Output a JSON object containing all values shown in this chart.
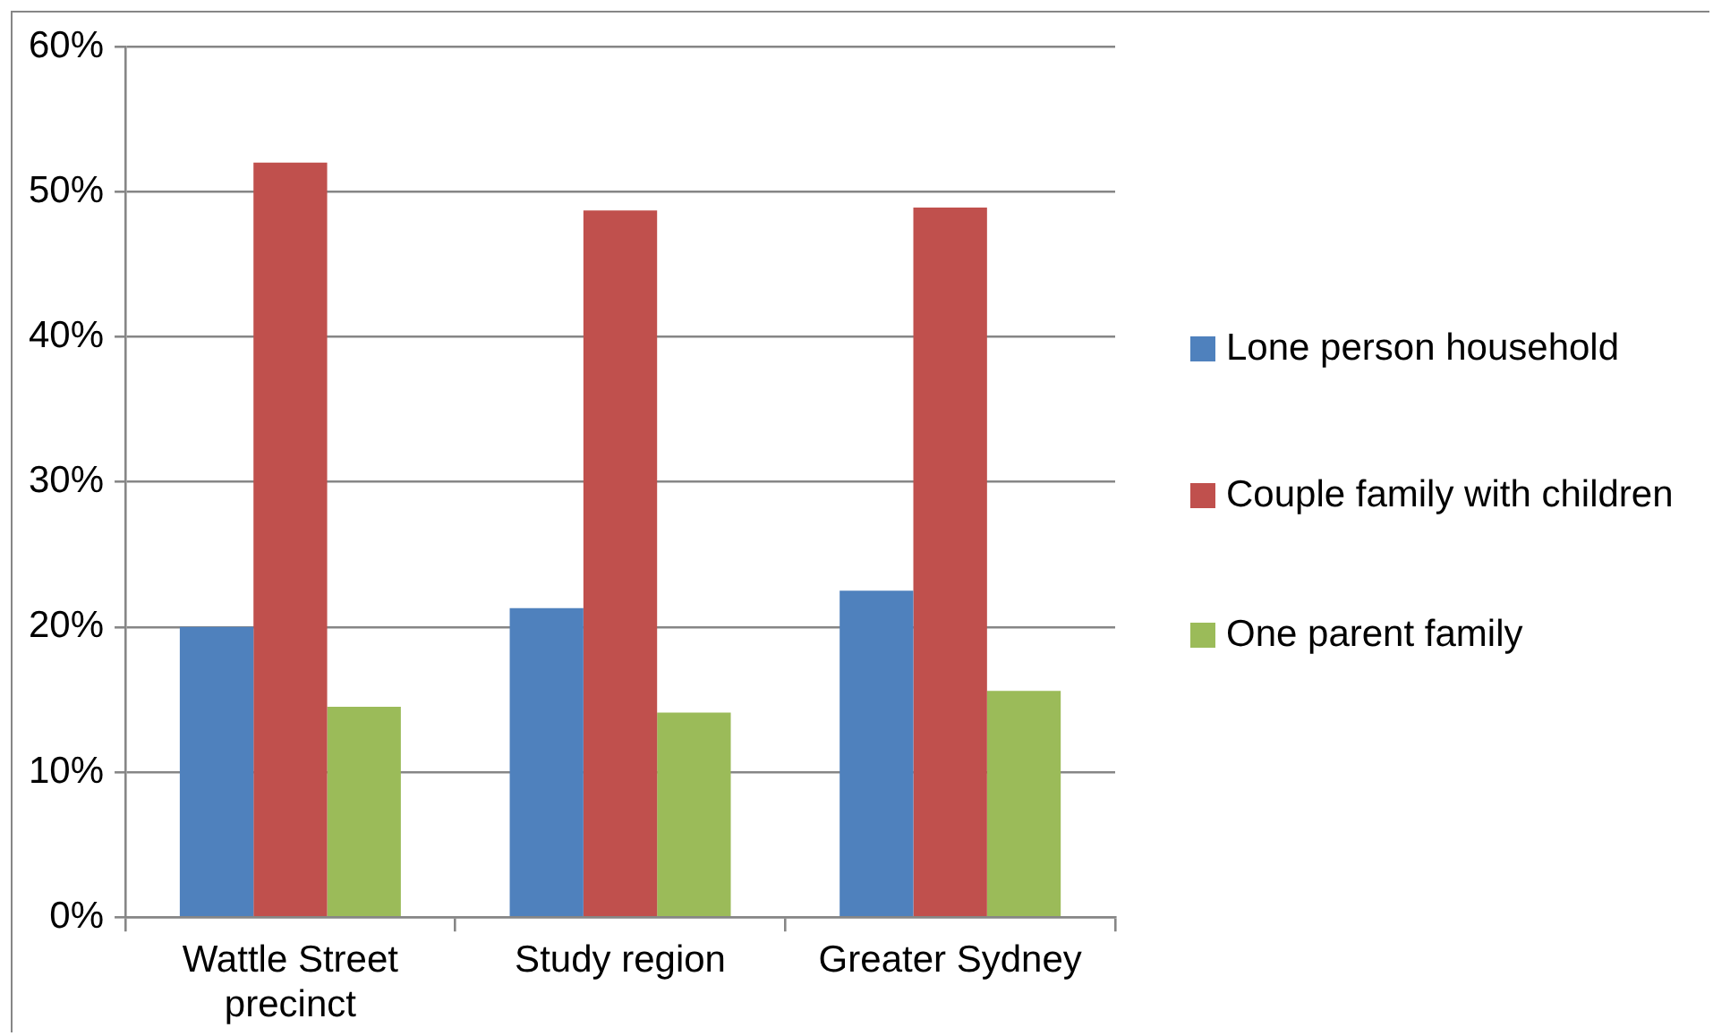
{
  "chart_data": {
    "type": "bar",
    "categories": [
      "Wattle Street precinct",
      "Study region",
      "Greater Sydney"
    ],
    "series": [
      {
        "name": "Lone person household",
        "color": "#4f81bd",
        "values": [
          20.0,
          21.3,
          22.5
        ]
      },
      {
        "name": "Couple family with children",
        "color": "#c0504d",
        "values": [
          52.0,
          48.7,
          48.9
        ]
      },
      {
        "name": "One parent family",
        "color": "#9bbb59",
        "values": [
          14.5,
          14.1,
          15.6
        ]
      }
    ],
    "ylim": [
      0,
      60
    ],
    "yticks": [
      {
        "value": 0,
        "label": "0%"
      },
      {
        "value": 10,
        "label": "10%"
      },
      {
        "value": 20,
        "label": "20%"
      },
      {
        "value": 30,
        "label": "30%"
      },
      {
        "value": 40,
        "label": "40%"
      },
      {
        "value": 50,
        "label": "50%"
      },
      {
        "value": 60,
        "label": "60%"
      }
    ],
    "grid": "y",
    "legend": "right"
  }
}
